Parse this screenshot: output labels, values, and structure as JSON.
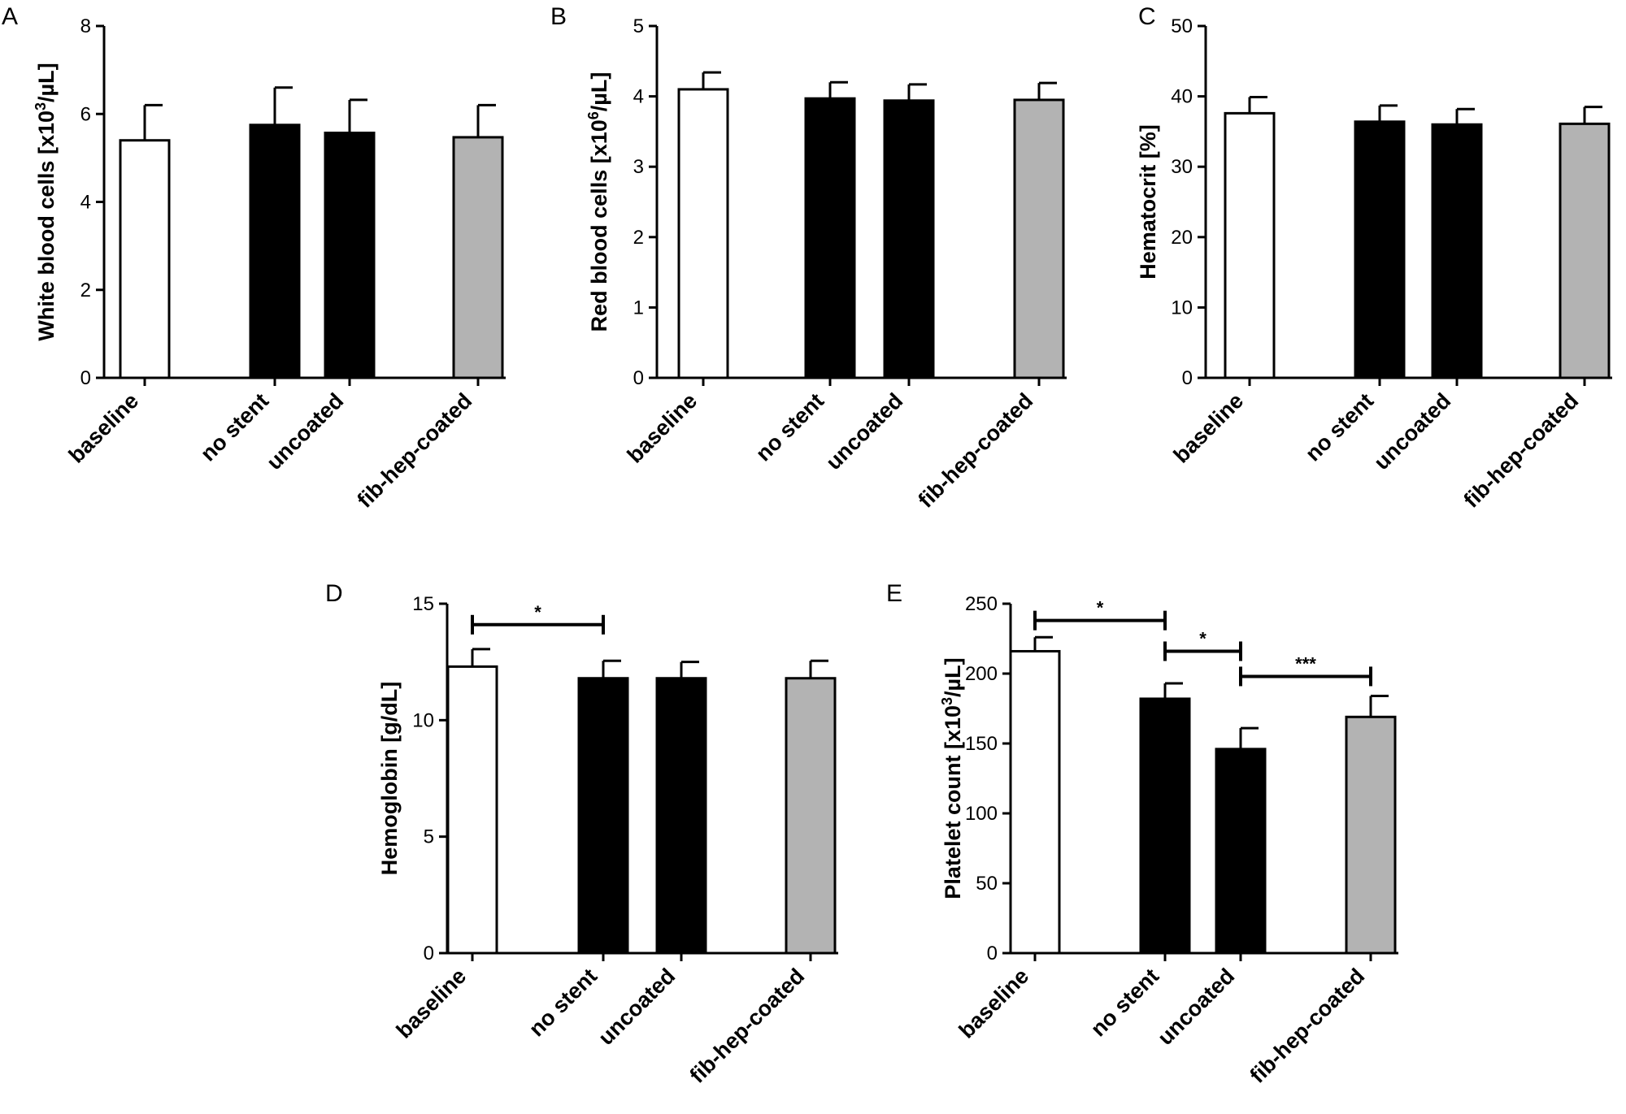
{
  "chart_data": [
    {
      "panel": "A",
      "type": "bar",
      "ylabel_main": "White blood cells  [x10",
      "ylabel_sup": "3",
      "ylabel_tail": "/µL]",
      "categories": [
        "baseline",
        "no stent",
        "uncoated",
        "fib-hep-coated"
      ],
      "values": [
        5.4,
        5.75,
        5.57,
        5.47
      ],
      "errors": [
        0.8,
        0.85,
        0.75,
        0.73
      ],
      "ylim": [
        0,
        8
      ],
      "yticks": [
        0,
        2,
        4,
        6,
        8
      ],
      "significance": []
    },
    {
      "panel": "B",
      "type": "bar",
      "ylabel_main": "Red blood cells [x10",
      "ylabel_sup": "6",
      "ylabel_tail": "/µL]",
      "categories": [
        "baseline",
        "no stent",
        "uncoated",
        "fib-hep-coated"
      ],
      "values": [
        4.1,
        3.97,
        3.94,
        3.95
      ],
      "errors": [
        0.24,
        0.23,
        0.23,
        0.24
      ],
      "ylim": [
        0,
        5
      ],
      "yticks": [
        0,
        1,
        2,
        3,
        4,
        5
      ],
      "significance": []
    },
    {
      "panel": "C",
      "type": "bar",
      "ylabel_main": "Hematocrit [%]",
      "ylabel_sup": "",
      "ylabel_tail": "",
      "categories": [
        "baseline",
        "no stent",
        "uncoated",
        "fib-hep-coated"
      ],
      "values": [
        37.6,
        36.4,
        36.0,
        36.1
      ],
      "errors": [
        2.3,
        2.3,
        2.2,
        2.4
      ],
      "ylim": [
        0,
        50
      ],
      "yticks": [
        0,
        10,
        20,
        30,
        40,
        50
      ],
      "significance": []
    },
    {
      "panel": "D",
      "type": "bar",
      "ylabel_main": "Hemoglobin [g/dL]",
      "ylabel_sup": "",
      "ylabel_tail": "",
      "categories": [
        "baseline",
        "no stent",
        "uncoated",
        "fib-hep-coated"
      ],
      "values": [
        12.3,
        11.8,
        11.8,
        11.8
      ],
      "errors": [
        0.75,
        0.75,
        0.7,
        0.75
      ],
      "ylim": [
        0,
        15
      ],
      "yticks": [
        0,
        5,
        10,
        15
      ],
      "significance": [
        {
          "from": 0,
          "to": 1,
          "y": 14.1,
          "label": "*"
        }
      ]
    },
    {
      "panel": "E",
      "type": "bar",
      "ylabel_main": "Platelet count [x10",
      "ylabel_sup": "3",
      "ylabel_tail": "/µL]",
      "categories": [
        "baseline",
        "no stent",
        "uncoated",
        "fib-hep-coated"
      ],
      "values": [
        216,
        182,
        146,
        169
      ],
      "errors": [
        10,
        11,
        15,
        15
      ],
      "ylim": [
        0,
        250
      ],
      "yticks": [
        0,
        50,
        100,
        150,
        200,
        250
      ],
      "significance": [
        {
          "from": 0,
          "to": 1,
          "y": 238,
          "label": "*"
        },
        {
          "from": 1,
          "to": 2,
          "y": 216,
          "label": "*"
        },
        {
          "from": 2,
          "to": 3,
          "y": 198,
          "label": "***"
        }
      ]
    }
  ],
  "colors": {
    "baseline": "#ffffff",
    "no stent": "#000000",
    "uncoated": "#000000",
    "fib-hep-coated": "#b3b3b3",
    "stroke": "#000000"
  }
}
